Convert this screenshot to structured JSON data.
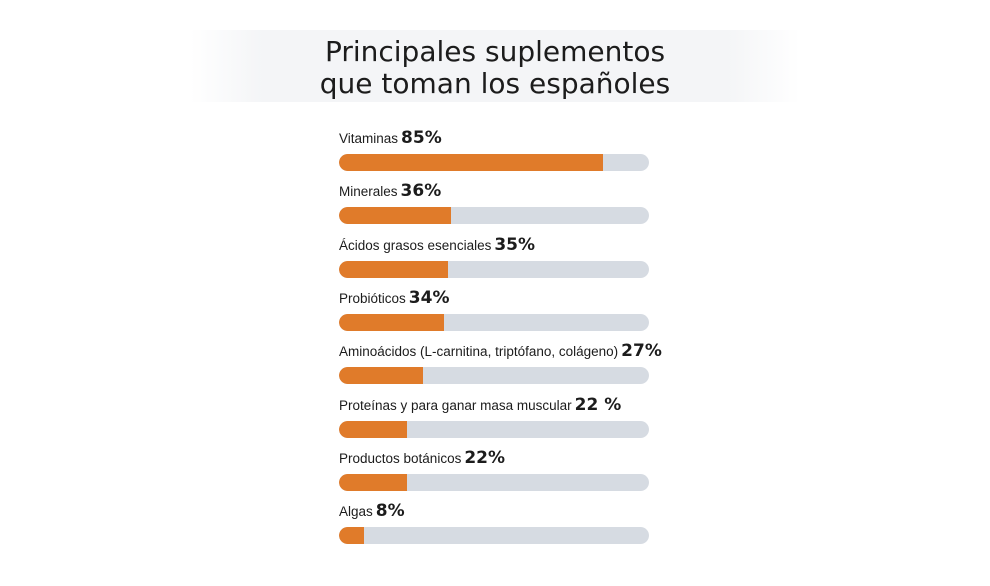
{
  "title_lines": [
    "Principales suplementos",
    "que toman los españoles"
  ],
  "colors": {
    "fill": "#e07b2a",
    "track": "#d6dbe2"
  },
  "chart_data": {
    "type": "bar",
    "orientation": "horizontal",
    "title": "Principales suplementos que toman los españoles",
    "categories": [
      "Vitaminas",
      "Minerales",
      "Ácidos grasos esenciales",
      "Probióticos",
      "Aminoácidos (L-carnitina, triptófano, colágeno)",
      "Proteínas y para ganar masa muscular",
      "Productos botánicos",
      "Algas"
    ],
    "values": [
      85,
      36,
      35,
      34,
      27,
      22,
      22,
      8
    ],
    "value_labels": [
      "85%",
      "36%",
      "35%",
      "34%",
      "27%",
      "22 %",
      "22%",
      "8%"
    ],
    "xlim": [
      0,
      100
    ],
    "unit": "%"
  }
}
